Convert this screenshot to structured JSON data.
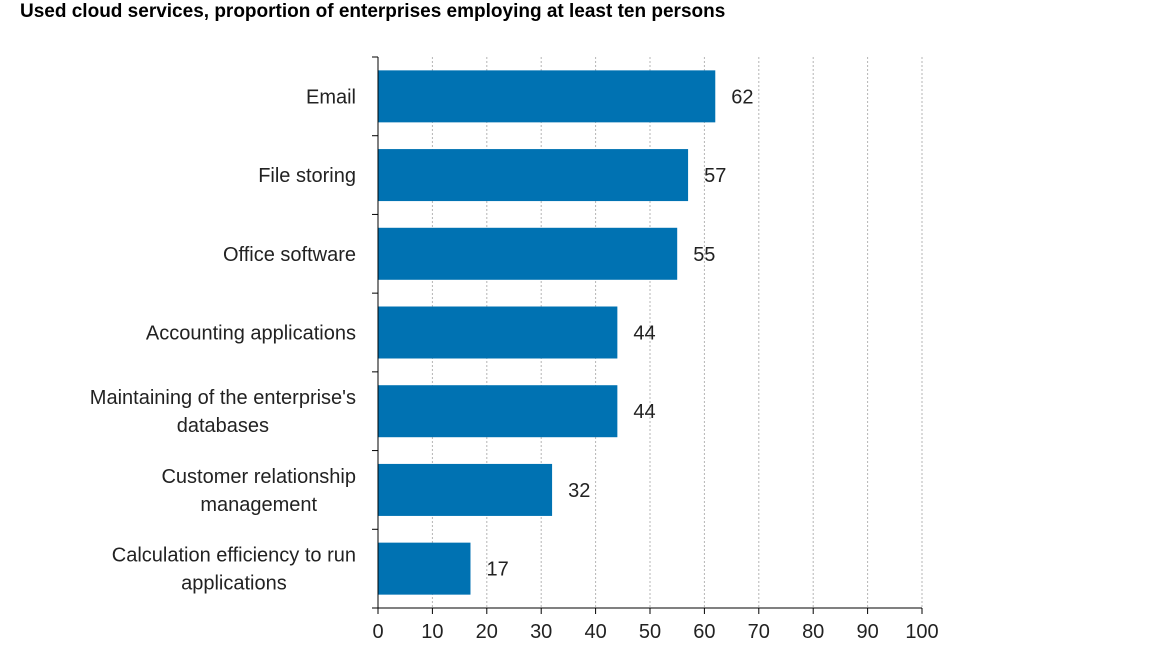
{
  "chart_data": {
    "type": "bar",
    "orientation": "horizontal",
    "title": "Used cloud services, proportion of enterprises employing at least ten persons",
    "categories": [
      [
        "Email"
      ],
      [
        "File storing"
      ],
      [
        "Office software"
      ],
      [
        "Accounting applications"
      ],
      [
        "Maintaining of the enterprise's",
        "databases"
      ],
      [
        "Customer relationship",
        "management"
      ],
      [
        "Calculation efficiency to run",
        "applications"
      ]
    ],
    "values": [
      62,
      57,
      55,
      44,
      44,
      32,
      17
    ],
    "value_labels": [
      "62",
      "57",
      "55",
      "44",
      "44",
      "32",
      "17"
    ],
    "xlim": [
      0,
      100
    ],
    "xticks": [
      "0",
      "10",
      "20",
      "30",
      "40",
      "50",
      "60",
      "70",
      "80",
      "90",
      "100"
    ],
    "xlabel": "",
    "ylabel": "",
    "grid": true,
    "bar_color": "#0072b2"
  }
}
